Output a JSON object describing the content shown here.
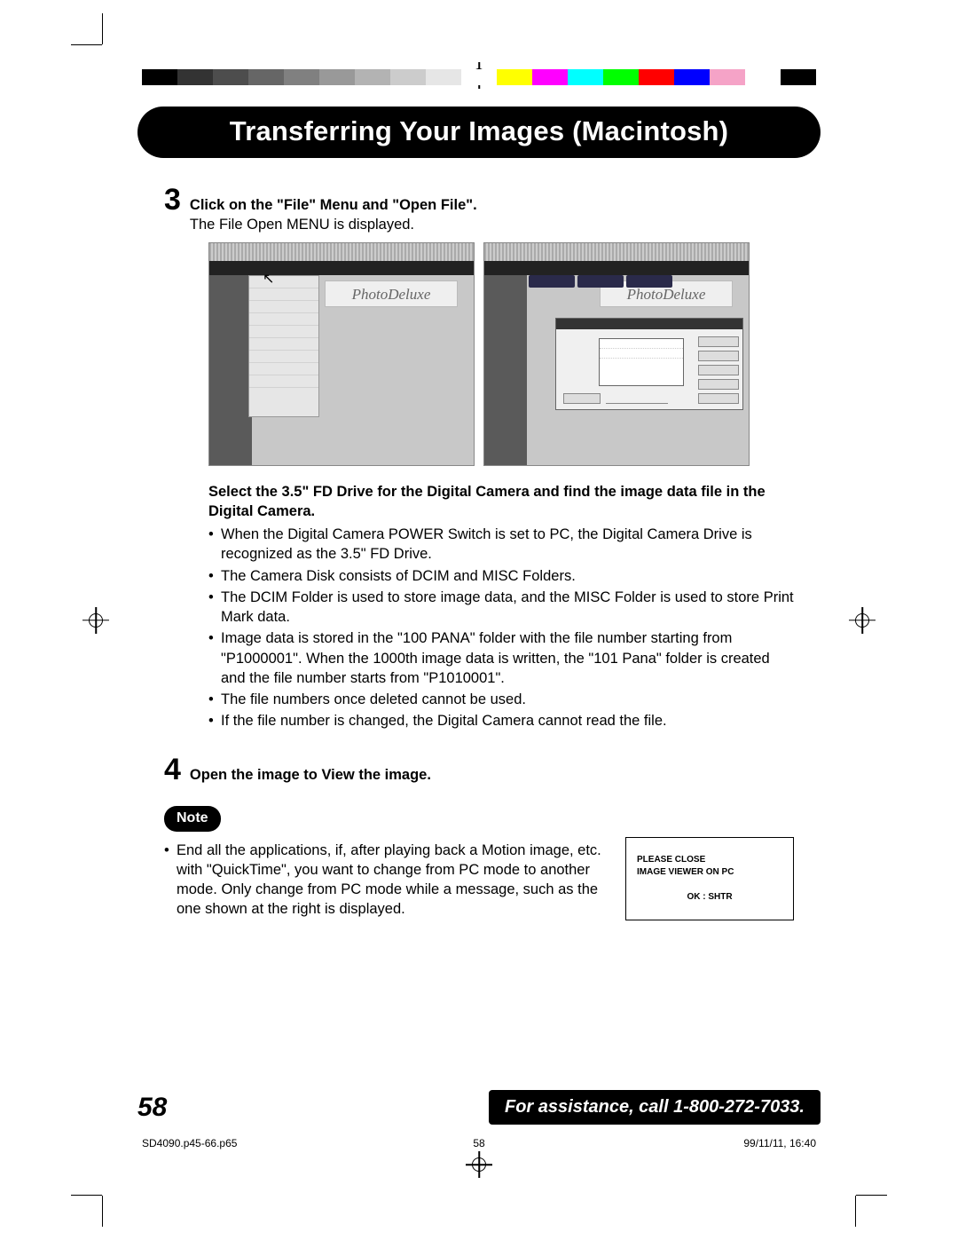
{
  "colorbar": [
    "#000000",
    "#333333",
    "#4d4d4d",
    "#666666",
    "#808080",
    "#999999",
    "#b3b3b3",
    "#cccccc",
    "#e6e6e6",
    "#ffffff",
    "#ffff00",
    "#ff00ff",
    "#00ffff",
    "#00ff00",
    "#ff0000",
    "#0000ff",
    "#f5a3c7",
    "#ffffff",
    "#000000"
  ],
  "title": "Transferring Your Images (Macintosh)",
  "step3": {
    "num": "3",
    "title": "Click on the \"File\" Menu and \"Open File\".",
    "subtitle": "The File Open MENU is displayed."
  },
  "brand_label": "PhotoDeluxe",
  "instr_bold": "Select the 3.5\" FD Drive for the Digital Camera and find the image data file in the Digital Camera.",
  "bullets": [
    "When the Digital Camera  POWER Switch is set to PC, the Digital Camera Drive is recognized as the 3.5\" FD Drive.",
    "The Camera Disk consists of  DCIM and MISC Folders.",
    "The DCIM Folder is used to store image data, and the MISC Folder is used to store Print Mark data.",
    "Image data is stored in the \"100 PANA\" folder with the file number starting from \"P1000001\". When the 1000th image data is written, the \"101 Pana\" folder is created and the file number starts from \"P1010001\".",
    "The file numbers once deleted cannot be used.",
    "If the file number is changed, the Digital Camera cannot read the file."
  ],
  "step4": {
    "num": "4",
    "title": "Open the image to View the image."
  },
  "note_label": "Note",
  "note_text": "End all the applications, if, after playing back a Motion image, etc. with \"QuickTime\", you want to change from PC mode to another mode. Only change from PC mode while a message, such as the one shown at the right is displayed.",
  "msgbox": {
    "line1": "PLEASE CLOSE",
    "line2": "IMAGE VIEWER ON PC",
    "line3": "OK : SHTR"
  },
  "page_number": "58",
  "assistance": "For assistance, call 1-800-272-7033.",
  "slug": {
    "file": "SD4090.p45-66.p65",
    "page": "58",
    "datetime": "99/11/11, 16:40"
  }
}
